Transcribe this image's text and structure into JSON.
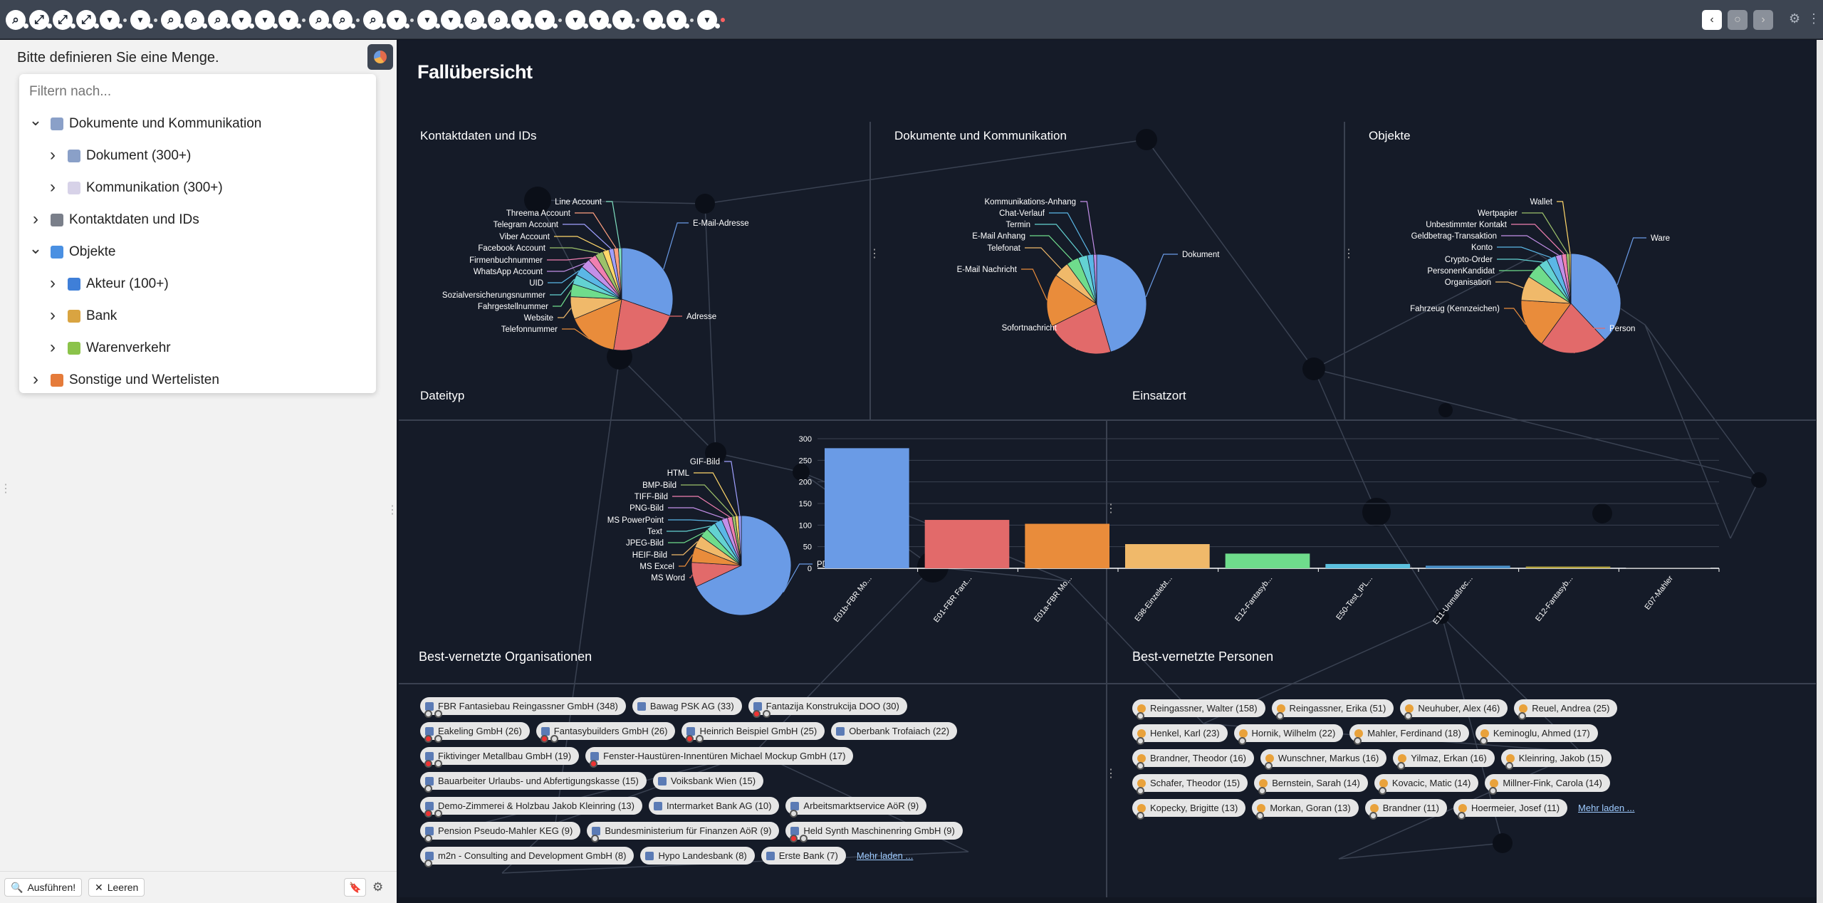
{
  "toolbar": {
    "icons": [
      "zoom-icon",
      "expand-icon",
      "expand-icon",
      "expand-icon",
      "filter-icon",
      "sep",
      "filter-icon",
      "sep",
      "zoom-icon",
      "zoom-icon",
      "zoom-icon",
      "filter-icon",
      "filter-icon",
      "filter-icon",
      "sep",
      "zoom-icon",
      "zoom-icon",
      "sep",
      "zoom-icon",
      "filter-icon",
      "sep",
      "filter-icon",
      "filter-icon",
      "zoom-icon",
      "zoom-icon",
      "filter-icon",
      "filter-icon",
      "sep",
      "filter-icon",
      "filter-icon",
      "filter-icon",
      "sep",
      "filter-icon",
      "filter-icon",
      "sep",
      "filter-icon",
      "red"
    ]
  },
  "left_panel": {
    "title": "Bitte definieren Sie eine Menge.",
    "filter_placeholder": "Filtern nach...",
    "tree": [
      {
        "label": "Dokumente und Kommunikation",
        "level": 0,
        "expanded": true,
        "icon": "document-icon"
      },
      {
        "label": "Dokument (300+)",
        "level": 1,
        "expanded": false,
        "icon": "document-icon"
      },
      {
        "label": "Kommunikation (300+)",
        "level": 1,
        "expanded": false,
        "icon": "envelope-icon"
      },
      {
        "label": "Kontaktdaten und IDs",
        "level": 0,
        "expanded": false,
        "icon": "id-card-icon"
      },
      {
        "label": "Objekte",
        "level": 0,
        "expanded": true,
        "icon": "objects-icon"
      },
      {
        "label": "Akteur (100+)",
        "level": 1,
        "expanded": false,
        "icon": "person-icon"
      },
      {
        "label": "Bank",
        "level": 1,
        "expanded": false,
        "icon": "money-bag-icon"
      },
      {
        "label": "Warenverkehr",
        "level": 1,
        "expanded": false,
        "icon": "goods-icon"
      },
      {
        "label": "Sonstige und Wertelisten",
        "level": 0,
        "expanded": false,
        "icon": "list-icon"
      }
    ],
    "run_label": "Ausführen!",
    "clear_label": "Leeren"
  },
  "main": {
    "title": "Fallübersicht",
    "orgs_title": "Best-vernetzte Organisationen",
    "persons_title": "Best-vernetzte Personen",
    "more_label": "Mehr laden ...",
    "organizations": [
      {
        "label": "FBR Fantasiebau Reingassner GmbH (348)",
        "pins": [
          "g",
          "r"
        ]
      },
      {
        "label": "Bawag PSK AG (33)",
        "pins": []
      },
      {
        "label": "Fantazija Konstrukcija DOO (30)",
        "pins": [
          "r",
          "r"
        ]
      },
      {
        "label": "Eakeling GmbH (26)",
        "pins": [
          "r",
          "r"
        ]
      },
      {
        "label": "Fantasybuilders GmbH (26)",
        "pins": [
          "r",
          "r"
        ]
      },
      {
        "label": "Heinrich Beispiel GmbH (25)",
        "pins": [
          "r",
          "r"
        ]
      },
      {
        "label": "Oberbank Trofaiach (22)",
        "pins": []
      },
      {
        "label": "Fiktivinger Metallbau GmbH (19)",
        "pins": [
          "r",
          "r"
        ]
      },
      {
        "label": "Fenster-Haustüren-Innentüren Michael Mockup GmbH (17)",
        "pins": [
          "r"
        ]
      },
      {
        "label": "Bauarbeiter Urlaubs- und Abfertigungskasse (15)",
        "pins": [
          "g"
        ]
      },
      {
        "label": "Voiksbank Wien (15)",
        "pins": []
      },
      {
        "label": "Demo-Zimmerei & Holzbau Jakob Kleinring (13)",
        "pins": [
          "r",
          "r"
        ]
      },
      {
        "label": "Intermarket Bank AG (10)",
        "pins": []
      },
      {
        "label": "Arbeitsmarktservice AöR (9)",
        "pins": [
          "g"
        ]
      },
      {
        "label": "Pension Pseudo-Mahler KEG (9)",
        "pins": [
          "g"
        ]
      },
      {
        "label": "Bundesministerium für Finanzen AöR (9)",
        "pins": [
          "g"
        ]
      },
      {
        "label": "Held Synth Maschinenring GmbH (9)",
        "pins": [
          "r",
          "r"
        ]
      },
      {
        "label": "m2n - Consulting and Development GmbH (8)",
        "pins": [
          "g"
        ]
      },
      {
        "label": "Hypo Landesbank (8)",
        "pins": []
      },
      {
        "label": "Erste Bank (7)",
        "pins": []
      }
    ],
    "persons": [
      {
        "label": "Reingassner, Walter (158)"
      },
      {
        "label": "Reingassner, Erika (51)"
      },
      {
        "label": "Neuhuber, Alex (46)"
      },
      {
        "label": "Reuel, Andrea (25)"
      },
      {
        "label": "Henkel, Karl (23)"
      },
      {
        "label": "Hornik, Wilhelm (22)"
      },
      {
        "label": "Mahler, Ferdinand (18)"
      },
      {
        "label": "Keminoglu, Ahmed (17)"
      },
      {
        "label": "Brandner, Theodor (16)"
      },
      {
        "label": "Wunschner, Markus (16)"
      },
      {
        "label": "Yilmaz, Erkan (16)"
      },
      {
        "label": "Kleinring, Jakob (15)"
      },
      {
        "label": "Schafer, Theodor (15)"
      },
      {
        "label": "Bernstein, Sarah (14)"
      },
      {
        "label": "Kovacic, Matic (14)"
      },
      {
        "label": "Millner-Fink, Carola (14)"
      },
      {
        "label": "Kopecky, Brigitte (13)"
      },
      {
        "label": "Morkan, Goran (13)"
      },
      {
        "label": "Brandner (11)"
      },
      {
        "label": "Hoermeier, Josef (11)"
      }
    ]
  },
  "chart_data": [
    {
      "type": "pie",
      "title": "Kontaktdaten und IDs",
      "labels": [
        "E-Mail-Adresse",
        "Adresse",
        "Telefonnummer",
        "Website",
        "Fahrgestellnummer",
        "Sozialversicherungsnummer",
        "UID",
        "WhatsApp Account",
        "Firmenbuchnummer",
        "Facebook Account",
        "Viber Account",
        "Telegram Account",
        "Threema Account",
        "Line Account"
      ],
      "values": [
        30,
        22,
        16,
        7,
        4,
        3,
        3,
        3,
        2.5,
        2.5,
        2,
        1.5,
        1.5,
        1
      ]
    },
    {
      "type": "pie",
      "title": "Dokumente und Kommunikation",
      "labels": [
        "Dokument",
        "Sofortnachricht",
        "E-Mail Nachricht",
        "Telefonat",
        "E-Mail Anhang",
        "Termin",
        "Chat-Verlauf",
        "Kommunikations-Anhang"
      ],
      "values": [
        45,
        22,
        17,
        5,
        4,
        3,
        2,
        1
      ]
    },
    {
      "type": "pie",
      "title": "Objekte",
      "labels": [
        "Ware",
        "Person",
        "Fahrzeug (Kennzeichen)",
        "Organisation",
        "PersonenKandidat",
        "Crypto-Order",
        "Konto",
        "Geldbetrag-Transaktion",
        "Unbestimmter Kontakt",
        "Wertpapier",
        "Wallet"
      ],
      "values": [
        38,
        22,
        16,
        8,
        5,
        3,
        3,
        2,
        1.5,
        1,
        0.5
      ]
    },
    {
      "type": "pie",
      "title": "Dateityp",
      "labels": [
        "PDF",
        "MS Word",
        "MS Excel",
        "HEIF-Bild",
        "JPEG-Bild",
        "Text",
        "MS PowerPoint",
        "PNG-Bild",
        "TIFF-Bild",
        "BMP-Bild",
        "HTML",
        "GIF-Bild"
      ],
      "values": [
        68,
        8,
        5,
        4,
        3,
        3,
        2.5,
        2,
        1.5,
        1,
        1,
        1
      ]
    },
    {
      "type": "bar",
      "title": "Einsatzort",
      "categories": [
        "E01b-FBR Mo...",
        "E01-FBR Fant...",
        "E01a-FBR Mo...",
        "E98-Einzelebt...",
        "E12-Fantasyb...",
        "E50-Test_IPL...",
        "E11-Unmaßrec...",
        "E12-Fantasyb...",
        "E07-Mahler"
      ],
      "values": [
        278,
        112,
        103,
        56,
        34,
        10,
        6,
        4,
        1
      ],
      "ylim": [
        0,
        300
      ],
      "yticks": [
        0,
        50,
        100,
        150,
        200,
        250,
        300
      ],
      "colors": [
        "#6a9be6",
        "#e26a6a",
        "#e98c3b",
        "#f0b96a",
        "#6fdc8c",
        "#5bc0de",
        "#4a90c8",
        "#b5a642",
        "#888888"
      ]
    }
  ],
  "pie_colors": [
    "#6a9be6",
    "#e26a6a",
    "#e98c3b",
    "#f0b96a",
    "#6fdc8c",
    "#63d2d2",
    "#5bb7e6",
    "#c38fe8",
    "#f07fb0",
    "#9cc16a",
    "#ffd76a",
    "#a0a0ff",
    "#ff9f7f",
    "#7fe0c0"
  ]
}
